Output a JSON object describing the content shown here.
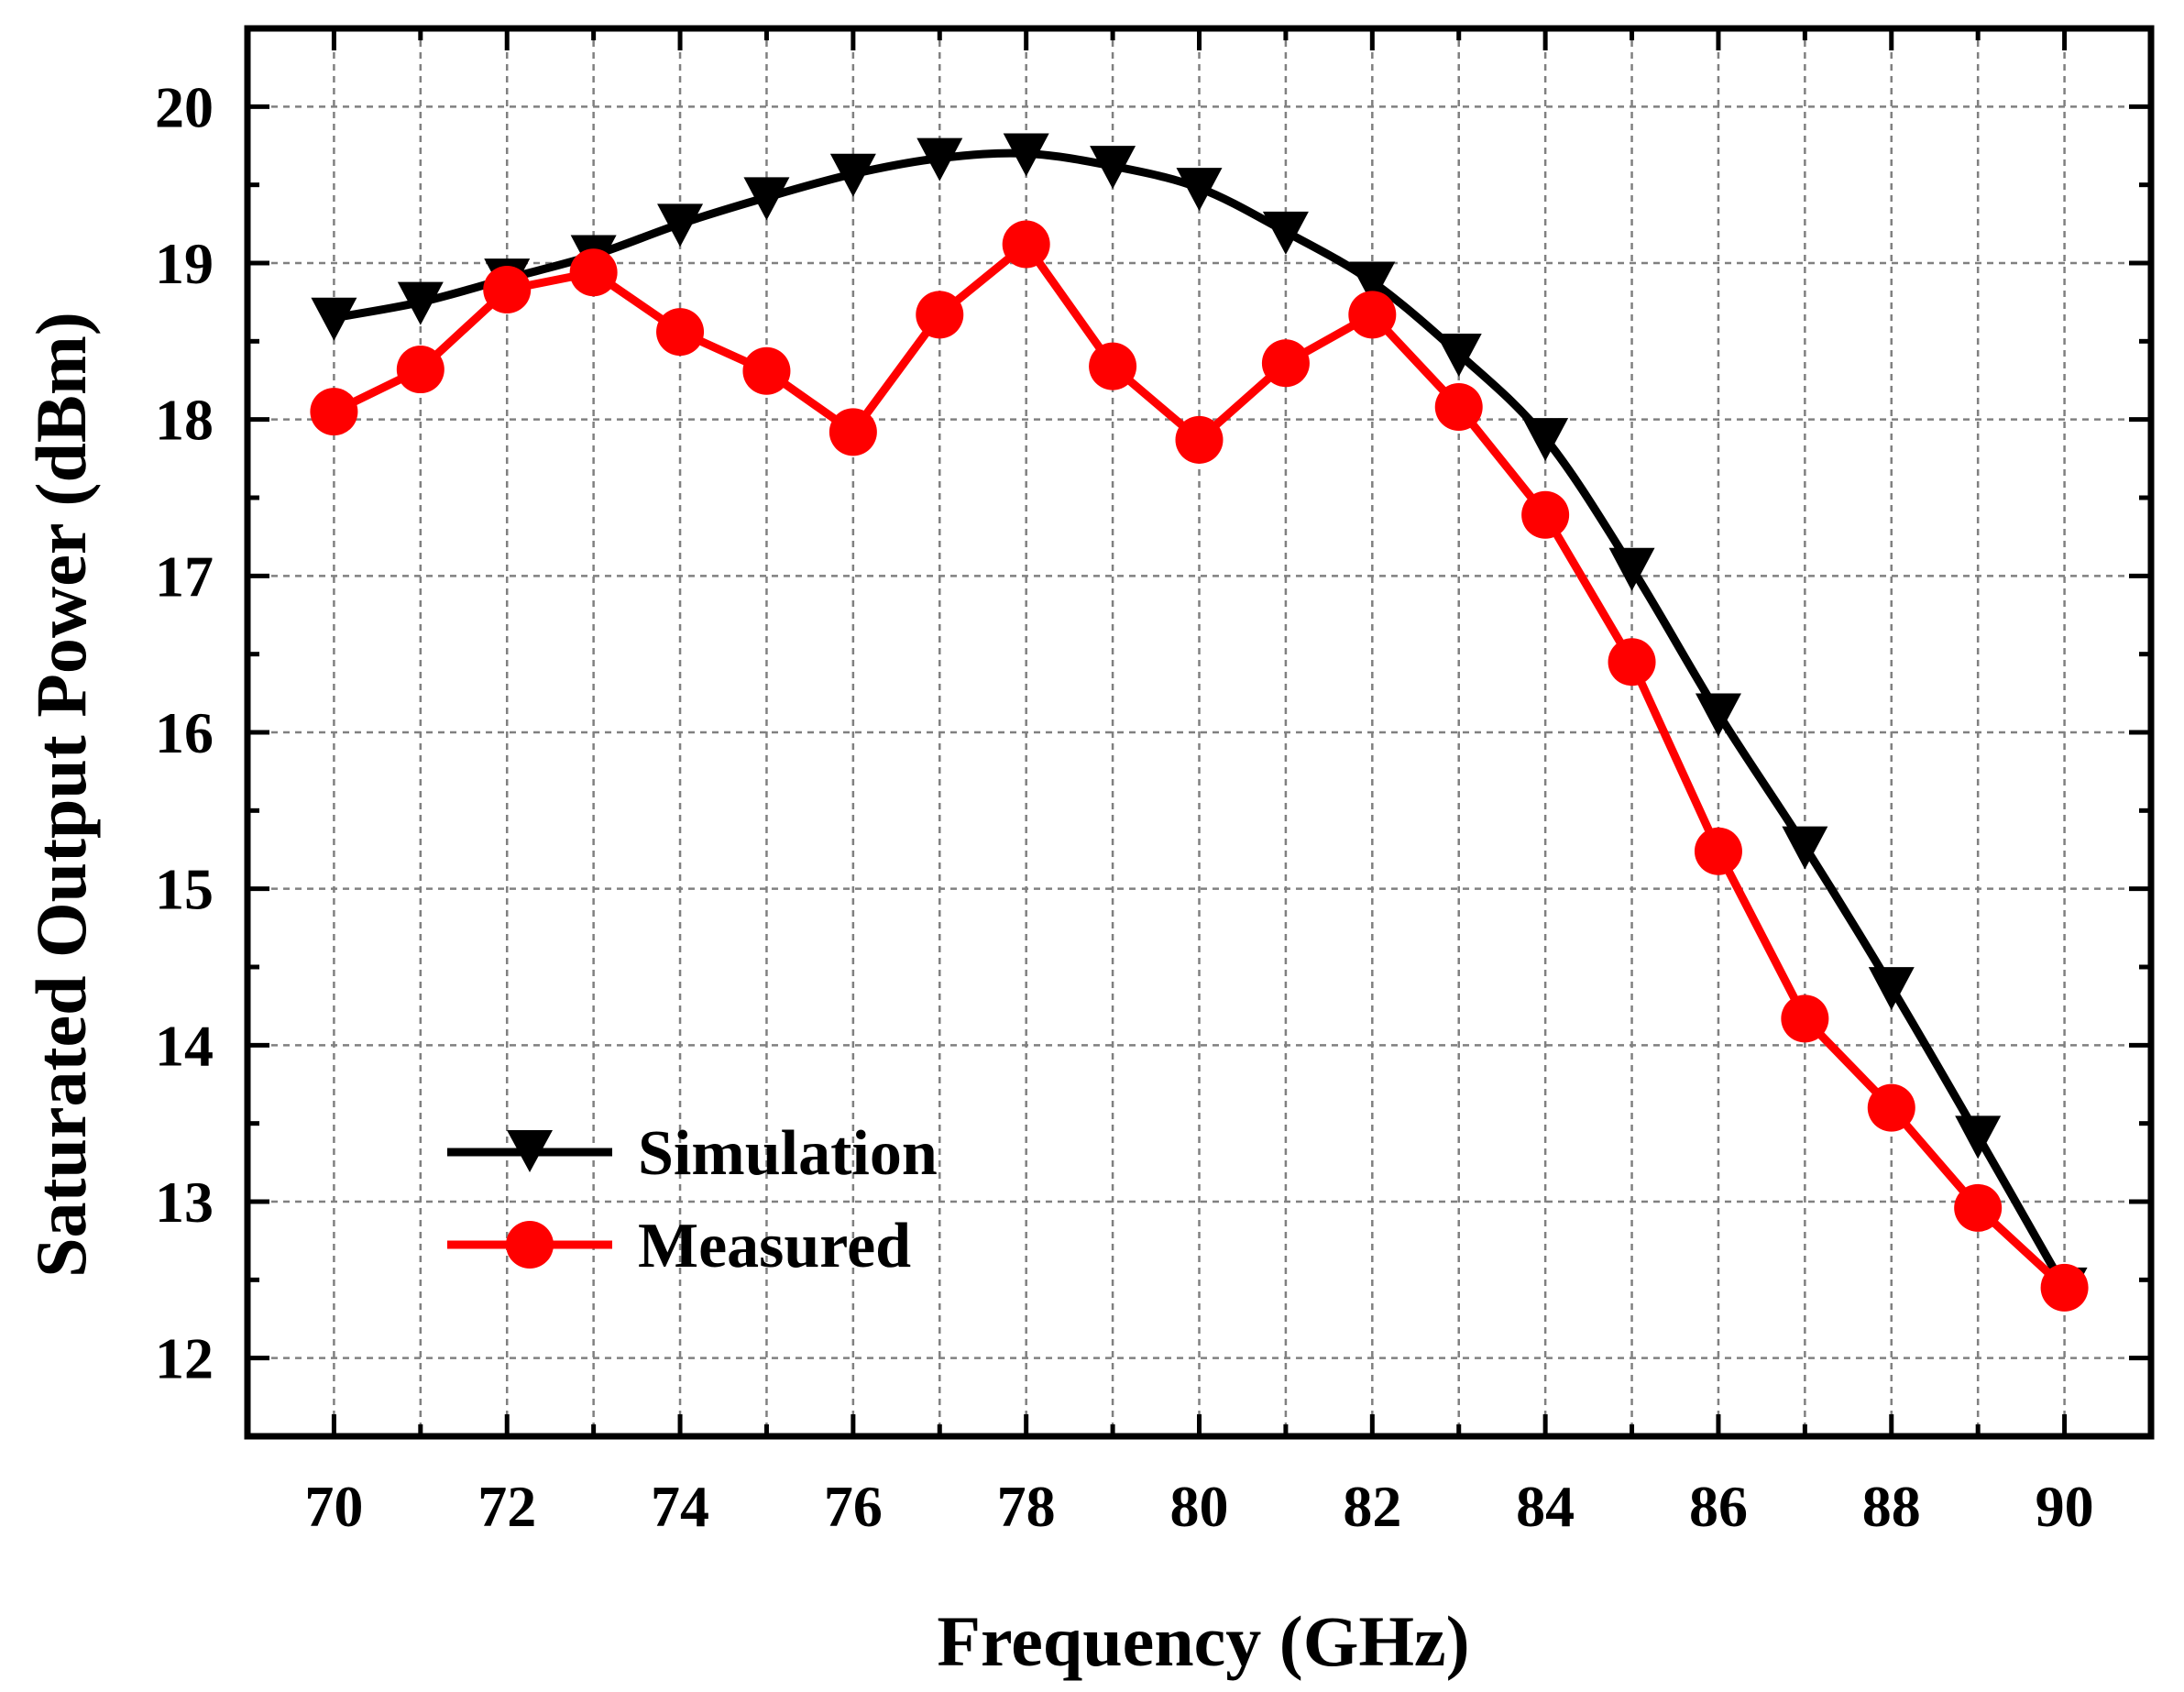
{
  "chart_data": {
    "type": "line",
    "title": "",
    "xlabel": "Frequency (GHz)",
    "ylabel": "Saturated Output Power (dBm)",
    "xlim": [
      69,
      91
    ],
    "ylim": [
      11.5,
      20.5
    ],
    "xticks": [
      70,
      72,
      74,
      76,
      78,
      80,
      82,
      84,
      86,
      88,
      90
    ],
    "yticks": [
      12,
      13,
      14,
      15,
      16,
      17,
      18,
      19,
      20
    ],
    "grid": true,
    "legend_position": "bottom-left",
    "x": [
      70,
      71,
      72,
      73,
      74,
      75,
      76,
      77,
      78,
      79,
      80,
      81,
      82,
      83,
      84,
      85,
      86,
      87,
      88,
      89,
      90
    ],
    "series": [
      {
        "name": "Simulation",
        "color": "#000000",
        "marker": "triangle-down",
        "values": [
          18.65,
          18.75,
          18.9,
          19.05,
          19.25,
          19.42,
          19.57,
          19.67,
          19.7,
          19.62,
          19.48,
          19.2,
          18.88,
          18.42,
          17.88,
          17.05,
          16.12,
          15.27,
          14.37,
          13.42,
          12.45
        ]
      },
      {
        "name": "Measured",
        "color": "#ff0000",
        "marker": "circle",
        "values": [
          18.05,
          18.32,
          18.83,
          18.94,
          18.56,
          18.31,
          17.92,
          18.67,
          19.12,
          18.34,
          17.87,
          18.36,
          18.67,
          18.08,
          17.39,
          16.45,
          15.24,
          14.17,
          13.6,
          12.96,
          12.45
        ]
      }
    ]
  }
}
